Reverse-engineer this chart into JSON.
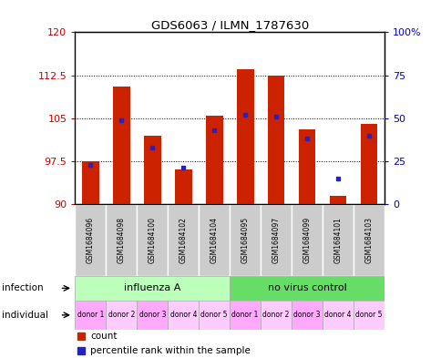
{
  "title": "GDS6063 / ILMN_1787630",
  "samples": [
    "GSM1684096",
    "GSM1684098",
    "GSM1684100",
    "GSM1684102",
    "GSM1684104",
    "GSM1684095",
    "GSM1684097",
    "GSM1684099",
    "GSM1684101",
    "GSM1684103"
  ],
  "counts": [
    97.5,
    110.5,
    102.0,
    96.0,
    105.5,
    113.5,
    112.5,
    103.0,
    91.5,
    104.0
  ],
  "percentiles": [
    23,
    49,
    33,
    21,
    43,
    52,
    51,
    38,
    15,
    40
  ],
  "ymin": 90,
  "ymax": 120,
  "yticks": [
    90,
    97.5,
    105,
    112.5,
    120
  ],
  "ytick_labels": [
    "90",
    "97.5",
    "105",
    "112.5",
    "120"
  ],
  "right_yticks": [
    0,
    25,
    50,
    75,
    100
  ],
  "right_ytick_labels": [
    "0",
    "25",
    "50",
    "75",
    "100%"
  ],
  "infection_groups": [
    {
      "label": "influenza A",
      "start": 0,
      "end": 5,
      "color": "#bbffbb"
    },
    {
      "label": "no virus control",
      "start": 5,
      "end": 10,
      "color": "#66dd66"
    }
  ],
  "donors": [
    "donor 1",
    "donor 2",
    "donor 3",
    "donor 4",
    "donor 5",
    "donor 1",
    "donor 2",
    "donor 3",
    "donor 4",
    "donor 5"
  ],
  "donor_colors": [
    "#ffaaff",
    "#ffccff",
    "#ffaaff",
    "#ffccff",
    "#ffccff",
    "#ffaaff",
    "#ffccff",
    "#ffaaff",
    "#ffccff",
    "#ffccff"
  ],
  "bar_color": "#cc2200",
  "dot_color": "#2222cc",
  "left_tick_color": "#cc0000",
  "right_tick_color": "#0000cc",
  "sample_box_color": "#cccccc",
  "bar_width": 0.55
}
